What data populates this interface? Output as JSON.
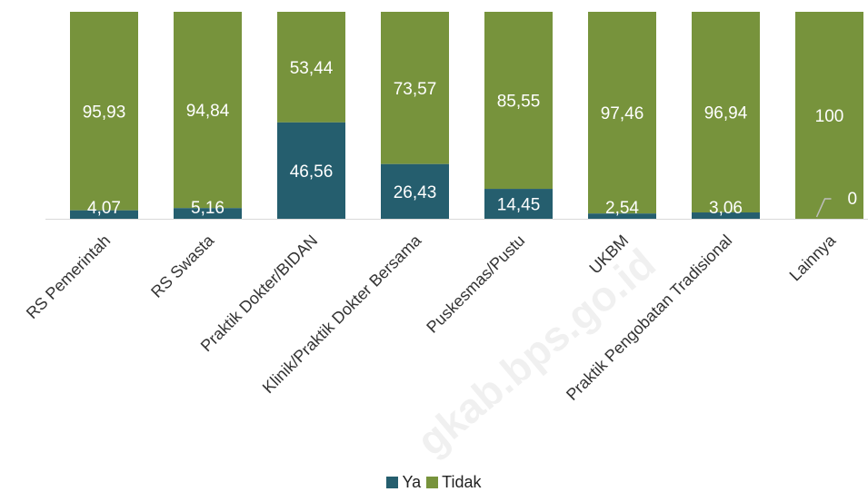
{
  "chart_data": {
    "type": "bar",
    "stacked": true,
    "title": "",
    "xlabel": "",
    "ylabel": "",
    "ylim": [
      0,
      100
    ],
    "grid": false,
    "legend_position": "bottom",
    "categories": [
      "RS Pemerintah",
      "RS Swasta",
      "Praktik Dokter/BIDAN",
      "Klinik/Praktik Dokter Bersama",
      "Puskesmas/Pustu",
      "UKBM",
      "Praktik Pengobatan Tradisional",
      "Lainnya"
    ],
    "series": [
      {
        "name": "Ya",
        "color": "#255E6E",
        "values": [
          4.07,
          5.16,
          46.56,
          26.43,
          14.45,
          2.54,
          3.06,
          0
        ],
        "labels": [
          "4,07",
          "5,16",
          "46,56",
          "26,43",
          "14,45",
          "2,54",
          "3,06",
          "0"
        ]
      },
      {
        "name": "Tidak",
        "color": "#77933C",
        "values": [
          95.93,
          94.84,
          53.44,
          73.57,
          85.55,
          97.46,
          96.94,
          100
        ],
        "labels": [
          "95,93",
          "94,84",
          "53,44",
          "73,57",
          "85,55",
          "97,46",
          "96,94",
          "100"
        ]
      }
    ]
  },
  "watermark": "gkab.bps.go.id"
}
